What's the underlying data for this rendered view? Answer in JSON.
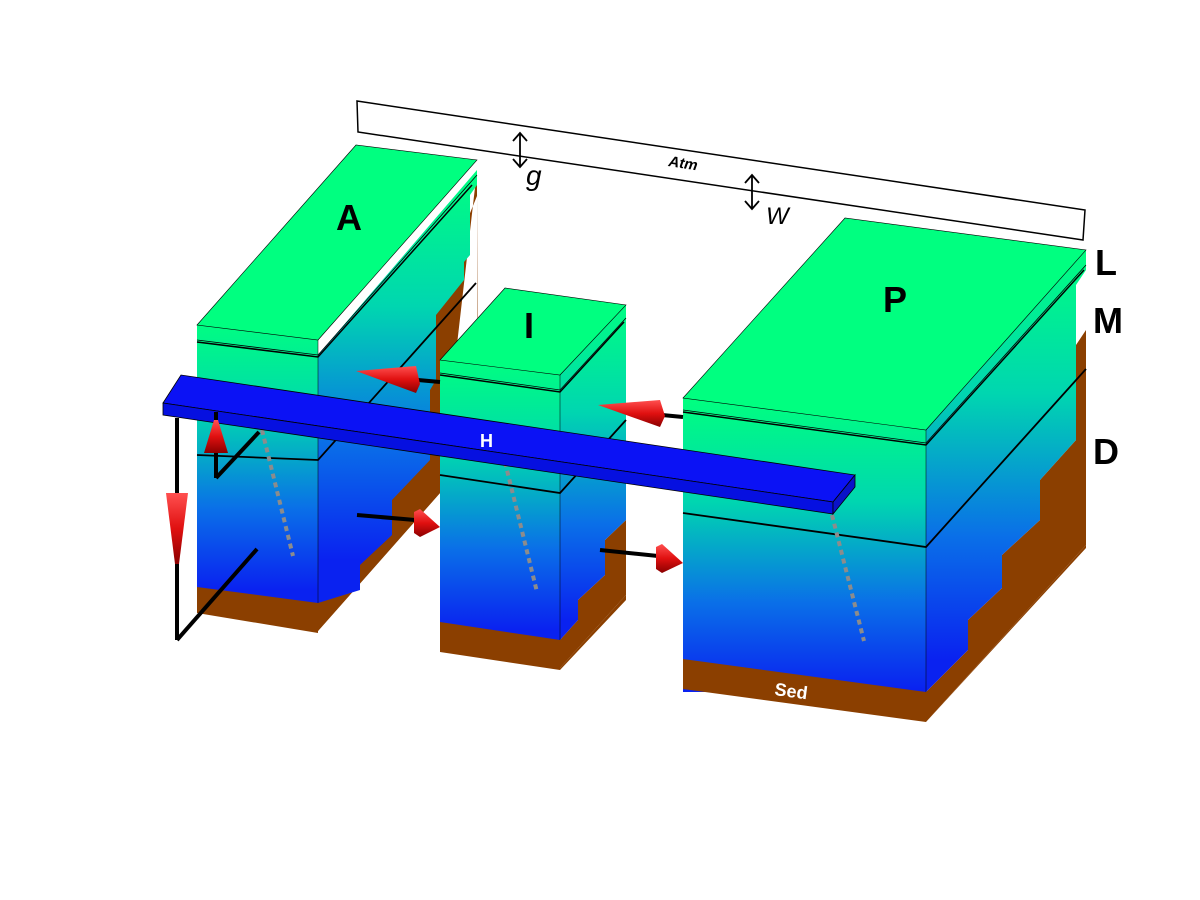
{
  "labels": {
    "atm": "Atm",
    "g": "g",
    "w": "W",
    "basin_a": "A",
    "basin_i": "I",
    "basin_p": "P",
    "layer_l": "L",
    "layer_m": "M",
    "layer_d": "D",
    "hbar": "H",
    "sed": "Sed"
  },
  "colors": {
    "surface": "#00ff80",
    "deep": "#0a1ff0",
    "sediment": "#8b3f00",
    "hbar": "#0b12f5",
    "arrow": "#e01010",
    "dash": "#8c8c8c"
  }
}
